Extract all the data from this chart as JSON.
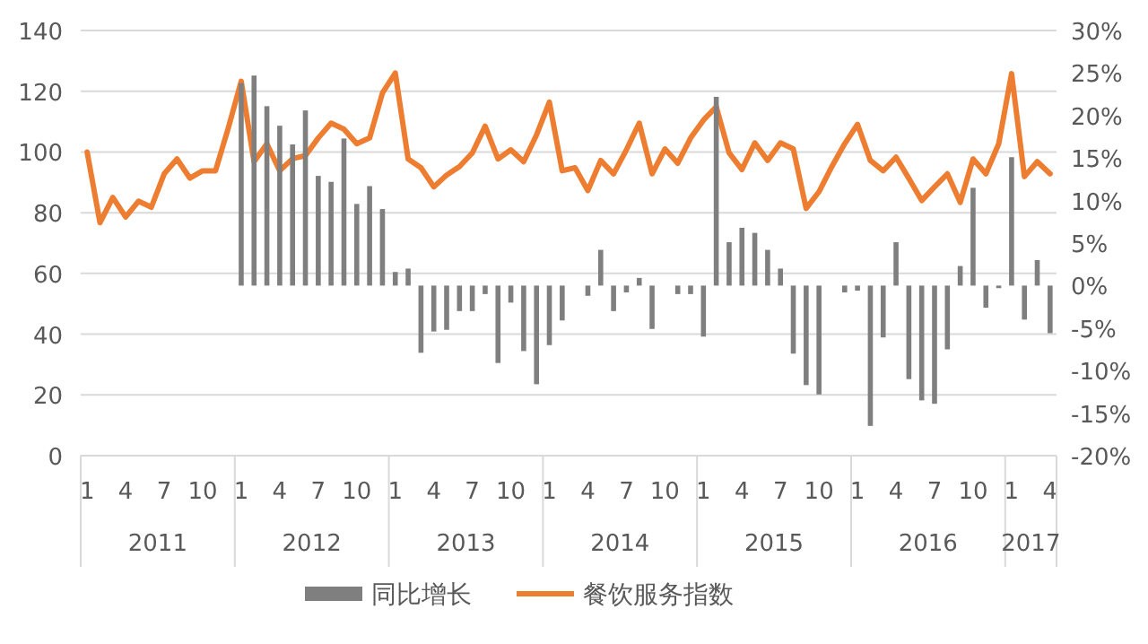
{
  "chart_data": {
    "type": "bar",
    "categories": [
      "1",
      null,
      null,
      "4",
      null,
      null,
      "7",
      null,
      null,
      "10",
      null,
      null,
      "1",
      null,
      null,
      "4",
      null,
      null,
      "7",
      null,
      null,
      "10",
      null,
      null,
      "1",
      null,
      null,
      "4",
      null,
      null,
      "7",
      null,
      null,
      "10",
      null,
      null,
      "1",
      null,
      null,
      "4",
      null,
      null,
      "7",
      null,
      null,
      "10",
      null,
      null,
      "1",
      null,
      null,
      "4",
      null,
      null,
      "7",
      null,
      null,
      "10",
      null,
      null,
      "1",
      null,
      null,
      "4",
      null,
      null,
      "7",
      null,
      null,
      "10",
      null,
      null,
      "1",
      null,
      null,
      "4"
    ],
    "series": [
      {
        "name": "同比增长",
        "axis": "y2",
        "color": "#7f7f7f",
        "values": [
          null,
          null,
          null,
          null,
          null,
          null,
          null,
          null,
          null,
          null,
          null,
          null,
          23.8,
          24.7,
          21.1,
          18.8,
          16.6,
          20.6,
          12.9,
          12.2,
          17.3,
          9.6,
          11.7,
          9.0,
          1.6,
          2.0,
          -7.9,
          -5.4,
          -5.2,
          -3.0,
          -3.0,
          -1.0,
          -9.1,
          -2.0,
          -7.7,
          -11.6,
          -7.0,
          -4.1,
          null,
          -1.2,
          4.2,
          -3.0,
          -0.8,
          0.9,
          -5.1,
          null,
          -1.0,
          -1.0,
          -6.0,
          22.2,
          5.1,
          6.8,
          6.2,
          4.2,
          2.0,
          -8.0,
          -11.7,
          -12.8,
          null,
          -0.8,
          -0.6,
          -16.5,
          -6.1,
          5.1,
          -11.0,
          -13.5,
          -13.9,
          -7.5,
          2.3,
          11.5,
          -2.6,
          -0.3,
          15.1,
          -4.0,
          3.0,
          -5.6
        ]
      },
      {
        "name": "餐饮服务指数",
        "type": "line",
        "color": "#ed7d31",
        "values": [
          100,
          76.7,
          85,
          78.6,
          83.8,
          81.8,
          92.8,
          97.7,
          91.4,
          93.8,
          93.8,
          108,
          123.3,
          96.8,
          102.7,
          93.8,
          97.8,
          98.8,
          104.6,
          109.5,
          107.5,
          102.7,
          104.6,
          119.4,
          126,
          97.7,
          94.8,
          88.5,
          92.4,
          95.2,
          99.7,
          108.5,
          97.7,
          100.7,
          96.8,
          105.6,
          116.4,
          93.8,
          94.8,
          87.3,
          97.2,
          92.8,
          100.7,
          109.5,
          92.8,
          101,
          96.3,
          104.6,
          110.5,
          114.9,
          99.7,
          94.2,
          103,
          97.2,
          103,
          101,
          81.4,
          86.9,
          95.2,
          102.7,
          109.1,
          97.2,
          93.8,
          98.3,
          91.3,
          84,
          88.5,
          92.8,
          83.4,
          97.7,
          92.8,
          102.7,
          125.8,
          91.9,
          96.8,
          92.8
        ]
      }
    ],
    "ylim": [
      0,
      140
    ],
    "yticks": [
      0,
      20,
      40,
      60,
      80,
      100,
      120,
      140
    ],
    "y2lim": [
      -20,
      30
    ],
    "y2ticks": [
      {
        "value": -20,
        "label": "-20%"
      },
      {
        "value": -15,
        "label": "-15%"
      },
      {
        "value": -10,
        "label": "-10%"
      },
      {
        "value": -5,
        "label": "-5%"
      },
      {
        "value": 0,
        "label": "0%"
      },
      {
        "value": 5,
        "label": "5%"
      },
      {
        "value": 10,
        "label": "10%"
      },
      {
        "value": 15,
        "label": "15%"
      },
      {
        "value": 20,
        "label": "20%"
      },
      {
        "value": 25,
        "label": "25%"
      },
      {
        "value": 30,
        "label": "30%"
      }
    ],
    "annotations": [
      "2011",
      "2012",
      "2013",
      "2014",
      "2015",
      "2016",
      "2017"
    ],
    "grid": "y",
    "legend": "bottom"
  }
}
